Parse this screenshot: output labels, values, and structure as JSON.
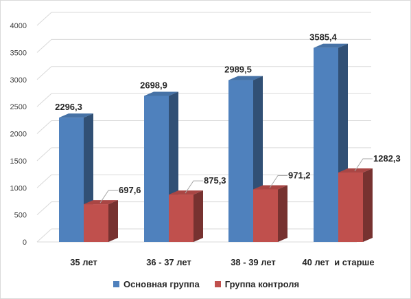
{
  "chart_data": {
    "type": "bar",
    "title": "",
    "xlabel": "",
    "ylabel": "",
    "categories": [
      "35 лет",
      "36 - 37 лет",
      "38 - 39 лет",
      "40 лет  и старше"
    ],
    "series": [
      {
        "name": "Основная группа",
        "values": [
          2296.3,
          2698.9,
          2989.5,
          3585.4
        ],
        "labels": [
          "2296,3",
          "2698,9",
          "2989,5",
          "3585,4"
        ],
        "color": "#4f81bd"
      },
      {
        "name": "Группа контроля",
        "values": [
          697.6,
          875.3,
          971.2,
          1282.3
        ],
        "labels": [
          "697,6",
          "875,3",
          "971,2",
          "1282,3"
        ],
        "color": "#c0504d"
      }
    ],
    "yticks": [
      "0",
      "500",
      "1000",
      "1500",
      "2000",
      "2500",
      "3000",
      "3500",
      "4000"
    ],
    "ylim": [
      0,
      4000
    ],
    "grid": true,
    "legend": "bottom",
    "style": "3d-clustered-column"
  }
}
